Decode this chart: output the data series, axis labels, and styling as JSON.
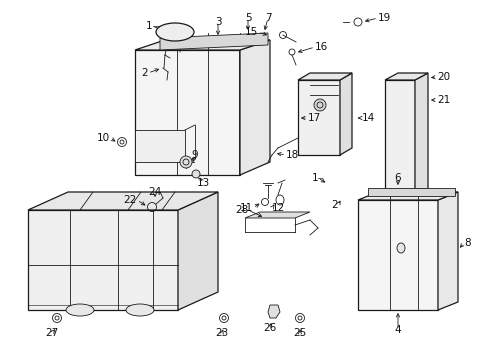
{
  "bg_color": "#ffffff",
  "line_color": "#1a1a1a",
  "fig_width": 4.89,
  "fig_height": 3.6,
  "dpi": 100,
  "font_size": 7.5,
  "label_color": "#111111"
}
